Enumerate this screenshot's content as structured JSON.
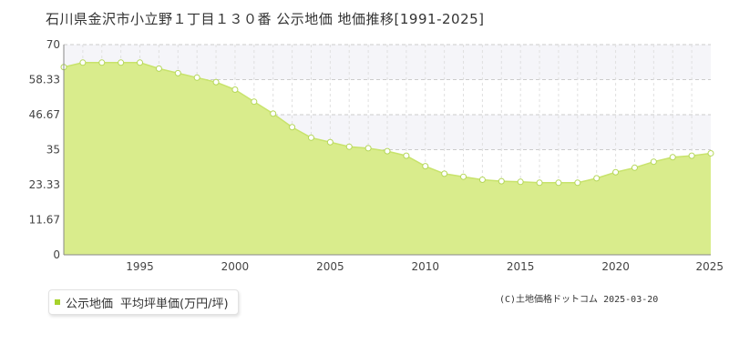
{
  "title": "石川県金沢市小立野１丁目１３０番 公示地価 地価推移[1991-2025]",
  "legend": {
    "series_name": "公示地価",
    "unit_label": "平均坪単価(万円/坪)",
    "color": "#a6d22b"
  },
  "copyright": "(C)土地価格ドットコム 2025-03-20",
  "colors": {
    "area_fill": "#d9ec8c",
    "line": "#c8e36c",
    "marker_fill": "#ffffff",
    "marker_stroke": "#b5d75a",
    "band": "#f5f5f9",
    "grid": "#cccccc",
    "axis": "#888888"
  },
  "chart_data": {
    "type": "area",
    "title": "石川県金沢市小立野１丁目１３０番 公示地価 地価推移[1991-2025]",
    "xlim": [
      1991,
      2025
    ],
    "ylim": [
      0,
      70
    ],
    "x_ticks": [
      1995,
      2000,
      2005,
      2010,
      2015,
      2020,
      2025
    ],
    "y_ticks": [
      {
        "value": 0,
        "label": "0"
      },
      {
        "value": 11.67,
        "label": "11.67"
      },
      {
        "value": 23.33,
        "label": "23.33"
      },
      {
        "value": 35,
        "label": "35"
      },
      {
        "value": 46.67,
        "label": "46.67"
      },
      {
        "value": 58.33,
        "label": "58.33"
      },
      {
        "value": 70,
        "label": "70"
      }
    ],
    "grid": true,
    "series": [
      {
        "name": "公示地価",
        "x": [
          1991,
          1992,
          1993,
          1994,
          1995,
          1996,
          1997,
          1998,
          1999,
          2000,
          2001,
          2002,
          2003,
          2004,
          2005,
          2006,
          2007,
          2008,
          2009,
          2010,
          2011,
          2012,
          2013,
          2014,
          2015,
          2016,
          2017,
          2018,
          2019,
          2020,
          2021,
          2022,
          2023,
          2024,
          2025
        ],
        "values": [
          62.5,
          64.0,
          64.0,
          64.0,
          64.0,
          62.0,
          60.5,
          59.0,
          57.5,
          55.0,
          51.0,
          47.0,
          42.5,
          39.0,
          37.5,
          36.0,
          35.5,
          34.5,
          33.0,
          29.5,
          27.0,
          26.0,
          25.0,
          24.5,
          24.3,
          24.0,
          24.0,
          24.0,
          25.5,
          27.5,
          29.0,
          31.0,
          32.5,
          33.0,
          33.8
        ]
      }
    ]
  }
}
